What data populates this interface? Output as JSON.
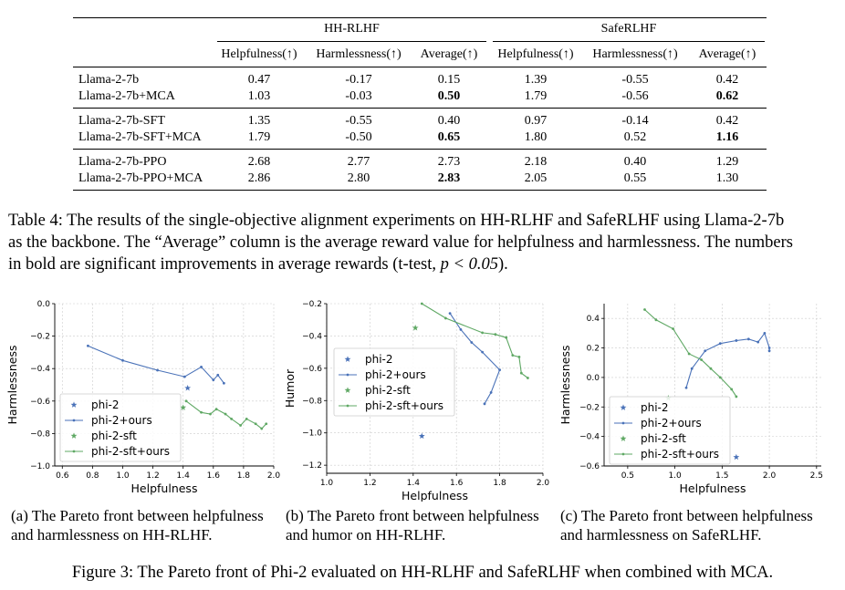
{
  "table": {
    "groups": [
      "HH-RLHF",
      "SafeRLHF"
    ],
    "columns": [
      "Helpfulness(↑)",
      "Harmlessness(↑)",
      "Average(↑)",
      "Helpfulness(↑)",
      "Harmlessness(↑)",
      "Average(↑)"
    ],
    "rows": [
      {
        "name": "Llama-2-7b",
        "values": [
          "0.47",
          "-0.17",
          "0.15",
          "1.39",
          "-0.55",
          "0.42"
        ]
      },
      {
        "name": "Llama-2-7b+MCA",
        "values": [
          "1.03",
          "-0.03",
          "0.50",
          "1.79",
          "-0.56",
          "0.62"
        ]
      },
      {
        "name": "Llama-2-7b-SFT",
        "values": [
          "1.35",
          "-0.55",
          "0.40",
          "0.97",
          "-0.14",
          "0.42"
        ]
      },
      {
        "name": "Llama-2-7b-SFT+MCA",
        "values": [
          "1.79",
          "-0.50",
          "0.65",
          "1.80",
          "0.52",
          "1.16"
        ]
      },
      {
        "name": "Llama-2-7b-PPO",
        "values": [
          "2.68",
          "2.77",
          "2.73",
          "2.18",
          "0.40",
          "1.29"
        ]
      },
      {
        "name": "Llama-2-7b-PPO+MCA",
        "values": [
          "2.86",
          "2.80",
          "2.83",
          "2.05",
          "0.55",
          "1.30"
        ]
      }
    ]
  },
  "table_caption": {
    "line1": "Table 4: The results of the single-objective alignment experiments on HH-RLHF and SafeRLHF using Llama-2-7b",
    "line2": "as the backbone. The “Average” column is the average reward value for helpfulness and harmlessness. The numbers",
    "line3_pre": "in bold are significant improvements in average rewards (t-test, ",
    "line3_math": "p < 0.05",
    "line3_post": ")."
  },
  "figure_caption": "Figure 3: The Pareto front of Phi-2 evaluated on HH-RLHF and SafeRLHF when combined with MCA.",
  "colors": {
    "blue": "#4a72b8",
    "green": "#5fa864",
    "grid": "#cccccc"
  },
  "legend": [
    "phi-2",
    "phi-2+ours",
    "phi-2-sft",
    "phi-2-sft+ours"
  ],
  "chart_data": [
    {
      "type": "line",
      "caption_line1": "(a) The Pareto front between helpfulness",
      "caption_line2": "and harmlessness on HH-RLHF.",
      "xlabel": "Helpfulness",
      "ylabel": "Harmlessness",
      "xlim": [
        0.55,
        2.0
      ],
      "ylim": [
        -1.0,
        0.0
      ],
      "xticks": [
        "0.6",
        "0.8",
        "1.0",
        "1.2",
        "1.4",
        "1.6",
        "1.8",
        "2.0"
      ],
      "xtick_values": [
        0.6,
        0.8,
        1.0,
        1.2,
        1.4,
        1.6,
        1.8,
        2.0
      ],
      "yticks": [
        "0.0",
        "−0.2",
        "−0.4",
        "−0.6",
        "−0.8",
        "−1.0"
      ],
      "ytick_values": [
        0.0,
        -0.2,
        -0.4,
        -0.6,
        -0.8,
        -1.0
      ],
      "series": [
        {
          "name": "phi-2",
          "kind": "star",
          "color": "#4a72b8",
          "points": [
            [
              1.43,
              -0.52
            ]
          ]
        },
        {
          "name": "phi-2+ours",
          "kind": "line",
          "color": "#4a72b8",
          "points": [
            [
              0.77,
              -0.26
            ],
            [
              1.0,
              -0.35
            ],
            [
              1.23,
              -0.41
            ],
            [
              1.41,
              -0.45
            ],
            [
              1.52,
              -0.39
            ],
            [
              1.6,
              -0.47
            ],
            [
              1.63,
              -0.44
            ],
            [
              1.67,
              -0.49
            ]
          ]
        },
        {
          "name": "phi-2-sft",
          "kind": "star",
          "color": "#5fa864",
          "points": [
            [
              1.4,
              -0.64
            ]
          ]
        },
        {
          "name": "phi-2-sft+ours",
          "kind": "line",
          "color": "#5fa864",
          "points": [
            [
              1.42,
              -0.6
            ],
            [
              1.52,
              -0.67
            ],
            [
              1.58,
              -0.68
            ],
            [
              1.62,
              -0.65
            ],
            [
              1.68,
              -0.68
            ],
            [
              1.72,
              -0.71
            ],
            [
              1.78,
              -0.75
            ],
            [
              1.82,
              -0.71
            ],
            [
              1.88,
              -0.74
            ],
            [
              1.92,
              -0.77
            ],
            [
              1.95,
              -0.74
            ]
          ]
        }
      ]
    },
    {
      "type": "line",
      "caption_line1": "(b) The Pareto front between helpfulness",
      "caption_line2": "and humor on HH-RLHF.",
      "xlabel": "Helpfulness",
      "ylabel": "Humor",
      "xlim": [
        1.0,
        2.0
      ],
      "ylim": [
        -1.25,
        -0.2
      ],
      "xticks": [
        "1.0",
        "1.2",
        "1.4",
        "1.6",
        "1.8",
        "2.0"
      ],
      "xtick_values": [
        1.0,
        1.2,
        1.4,
        1.6,
        1.8,
        2.0
      ],
      "yticks": [
        "−0.2",
        "−0.4",
        "−0.6",
        "−0.8",
        "−1.0",
        "−1.2"
      ],
      "ytick_values": [
        -0.2,
        -0.4,
        -0.6,
        -0.8,
        -1.0,
        -1.2
      ],
      "series": [
        {
          "name": "phi-2",
          "kind": "star",
          "color": "#4a72b8",
          "points": [
            [
              1.44,
              -1.02
            ]
          ]
        },
        {
          "name": "phi-2+ours",
          "kind": "line",
          "color": "#4a72b8",
          "points": [
            [
              1.57,
              -0.26
            ],
            [
              1.62,
              -0.36
            ],
            [
              1.67,
              -0.44
            ],
            [
              1.72,
              -0.5
            ],
            [
              1.8,
              -0.61
            ],
            [
              1.76,
              -0.75
            ],
            [
              1.73,
              -0.82
            ]
          ]
        },
        {
          "name": "phi-2-sft",
          "kind": "star",
          "color": "#5fa864",
          "points": [
            [
              1.41,
              -0.35
            ]
          ]
        },
        {
          "name": "phi-2-sft+ours",
          "kind": "line",
          "color": "#5fa864",
          "points": [
            [
              1.44,
              -0.2
            ],
            [
              1.55,
              -0.29
            ],
            [
              1.72,
              -0.38
            ],
            [
              1.78,
              -0.39
            ],
            [
              1.83,
              -0.41
            ],
            [
              1.86,
              -0.52
            ],
            [
              1.89,
              -0.53
            ],
            [
              1.9,
              -0.63
            ],
            [
              1.93,
              -0.66
            ]
          ]
        }
      ]
    },
    {
      "type": "line",
      "caption_line1": "(c) The Pareto front between helpfulness",
      "caption_line2": "and harmlessness on SafeRLHF.",
      "xlabel": "Helpfulness",
      "ylabel": "Harmlessness",
      "xlim": [
        0.25,
        2.55
      ],
      "ylim": [
        -0.6,
        0.5
      ],
      "xticks": [
        "0.5",
        "1.0",
        "1.5",
        "2.0",
        "2.5"
      ],
      "xtick_values": [
        0.5,
        1.0,
        1.5,
        2.0,
        2.5
      ],
      "yticks": [
        "0.4",
        "0.2",
        "0.0",
        "−0.2",
        "−0.4",
        "−0.6"
      ],
      "ytick_values": [
        0.4,
        0.2,
        0.0,
        -0.2,
        -0.4,
        -0.6
      ],
      "series": [
        {
          "name": "phi-2",
          "kind": "star",
          "color": "#4a72b8",
          "points": [
            [
              1.65,
              -0.54
            ]
          ]
        },
        {
          "name": "phi-2+ours",
          "kind": "line",
          "color": "#4a72b8",
          "points": [
            [
              1.12,
              -0.07
            ],
            [
              1.18,
              0.06
            ],
            [
              1.32,
              0.18
            ],
            [
              1.48,
              0.23
            ],
            [
              1.65,
              0.25
            ],
            [
              1.78,
              0.26
            ],
            [
              1.88,
              0.24
            ],
            [
              1.95,
              0.3
            ],
            [
              2.0,
              0.2
            ],
            [
              2.0,
              0.18
            ]
          ]
        },
        {
          "name": "phi-2-sft",
          "kind": "star",
          "color": "#5fa864",
          "points": [
            [
              0.93,
              -0.14
            ]
          ]
        },
        {
          "name": "phi-2-sft+ours",
          "kind": "line",
          "color": "#5fa864",
          "points": [
            [
              0.68,
              0.46
            ],
            [
              0.8,
              0.39
            ],
            [
              0.98,
              0.33
            ],
            [
              1.15,
              0.16
            ],
            [
              1.28,
              0.12
            ],
            [
              1.38,
              0.06
            ],
            [
              1.48,
              0.0
            ],
            [
              1.6,
              -0.08
            ],
            [
              1.65,
              -0.13
            ]
          ]
        }
      ]
    }
  ]
}
